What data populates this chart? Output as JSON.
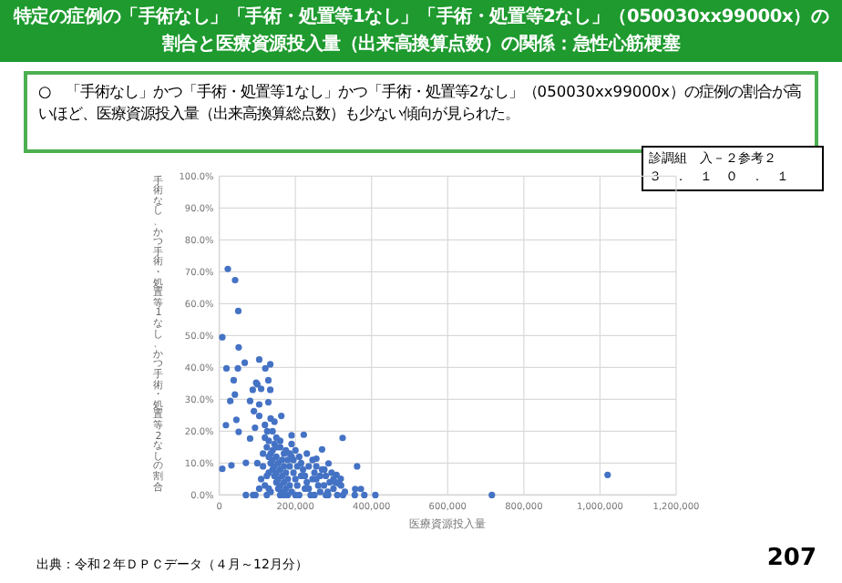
{
  "chart_data": {
    "type": "scatter",
    "title": "特定の症例の「手術なし」「手術・処置等1なし」「手術・処置等2なし」（050030xx99000x）の割合と医療資源投入量（出来高換算点数）の関係：急性心筋梗塞",
    "xlabel": "医療資源投入量",
    "ylabel": "手術なし、かつ手術・処置等1なし、かつ手術・処置等2なしの割合",
    "annotations": [
      "○　「手術なし」かつ「手術・処置等1なし」かつ「手術・処置等2なし」（050030xx99000x）の症例の割合が高いほど、医療資源投入量（出来高換算総点数）も少ない傾向が見られた。",
      "診調組　入－２参考２",
      "３　．　１　０　．　１",
      "出典：令和２年ＤＰＣデータ（４月～12月分）",
      "207"
    ],
    "xlim": [
      0,
      1200000
    ],
    "xticks": [
      0,
      {
        "value": 200000,
        "label": "200,000"
      },
      {
        "value": 400000,
        "label": "400,000"
      },
      {
        "value": 600000,
        "label": "600,000"
      },
      {
        "value": 800000,
        "label": "800,000"
      },
      {
        "value": 1000000,
        "label": "1,000,000"
      },
      {
        "value": 1200000,
        "label": "1,200,000"
      }
    ],
    "ylim": [
      0,
      100
    ],
    "yticks": [
      {
        "value": 0,
        "label": "0.0%"
      },
      {
        "value": 10,
        "label": "10.0%"
      },
      {
        "value": 20,
        "label": "20.0%"
      },
      {
        "value": 30,
        "label": "30.0%"
      },
      {
        "value": 40,
        "label": "40.0%"
      },
      {
        "value": 50,
        "label": "50.0%"
      },
      {
        "value": 60,
        "label": "60.0%"
      },
      {
        "value": 70,
        "label": "70.0%"
      },
      {
        "value": 80,
        "label": "80.0%"
      },
      {
        "value": 90,
        "label": "90.0%"
      },
      {
        "value": 100,
        "label": "100.0%"
      }
    ],
    "grid": true,
    "marker": "circle",
    "series": [
      {
        "color": "#4472c4",
        "x": [
          22500,
          41600,
          50000,
          8000,
          51000,
          19000,
          49000,
          67000,
          105000,
          134000,
          121000,
          38000,
          129000,
          100000,
          88000,
          134000,
          41000,
          8000,
          17500,
          32000,
          29000,
          45000,
          51000,
          70000,
          70000,
          89000,
          81000,
          91000,
          97000,
          105000,
          105000,
          94000,
          126000,
          81000,
          163000,
          190000,
          222000,
          270000,
          324000,
          255000,
          287000,
          276000,
          308000,
          319000,
          314000,
          362000,
          357000,
          372000,
          356000,
          381000,
          410000,
          716000,
          1020000,
          325000,
          286000,
          120000,
          125000,
          130000,
          135000,
          140000,
          145000,
          150000,
          155000,
          160000,
          110000,
          115000,
          120000,
          125000,
          130000,
          140000,
          145000,
          150000,
          155000,
          160000,
          165000,
          170000,
          175000,
          180000,
          185000,
          190000,
          195000,
          200000,
          205000,
          210000,
          215000,
          220000,
          225000,
          230000,
          235000,
          240000,
          245000,
          250000,
          255000,
          260000,
          265000,
          270000,
          280000,
          290000,
          300000,
          310000,
          140000,
          150000,
          160000,
          170000,
          180000,
          190000,
          200000,
          210000,
          230000,
          100000,
          105000,
          95000,
          135000,
          170000,
          200000,
          250000,
          280000,
          300000,
          320000,
          330000,
          145000,
          135000,
          130000,
          135000,
          140000,
          145000,
          150000,
          155000,
          160000,
          165000,
          165000,
          170000,
          175000,
          180000,
          185000,
          190000,
          175000,
          185000,
          195000,
          205000,
          215000,
          225000,
          235000,
          245000,
          255000,
          265000,
          275000,
          285000,
          295000,
          305000,
          115000,
          125000,
          130000,
          150000,
          160000,
          120000,
          129000,
          110000
        ],
        "values": [
          70.9,
          67.4,
          57.7,
          49.5,
          46.3,
          39.7,
          39.7,
          41.5,
          42.5,
          41,
          39.7,
          36,
          36,
          34.7,
          33,
          33,
          31.5,
          8.2,
          21.9,
          9.3,
          29.5,
          23.6,
          19.8,
          10.1,
          0,
          0,
          29.5,
          26.3,
          35.2,
          28.4,
          24.8,
          21.1,
          20,
          17.7,
          24.8,
          18.7,
          18.9,
          14.3,
          17.9,
          11.4,
          9.9,
          8,
          6.3,
          5.1,
          3.6,
          9,
          1.9,
          1.9,
          0,
          0,
          0,
          0,
          6.3,
          0,
          0,
          18,
          15,
          12,
          10,
          8,
          6,
          4,
          2,
          0,
          5,
          9,
          3,
          0,
          7,
          14,
          16,
          12,
          10,
          8,
          6,
          4,
          2,
          0,
          9,
          12,
          7,
          5,
          3,
          0,
          10,
          8,
          6,
          4,
          2,
          0,
          11,
          7,
          5,
          3,
          1,
          8,
          6,
          4,
          2,
          0,
          20,
          18,
          15,
          13,
          11,
          16,
          14,
          12,
          13,
          10,
          2,
          0,
          1,
          0,
          0,
          0,
          0,
          5,
          3,
          1,
          23,
          24,
          17,
          13,
          11,
          9,
          7,
          5,
          3,
          1,
          11,
          9,
          7,
          5,
          3,
          1,
          14,
          13,
          11,
          9,
          6,
          2,
          9,
          5,
          9,
          6,
          3,
          1,
          7,
          4,
          13,
          6,
          2,
          15,
          17,
          22,
          29.1,
          33.3
        ]
      }
    ]
  }
}
